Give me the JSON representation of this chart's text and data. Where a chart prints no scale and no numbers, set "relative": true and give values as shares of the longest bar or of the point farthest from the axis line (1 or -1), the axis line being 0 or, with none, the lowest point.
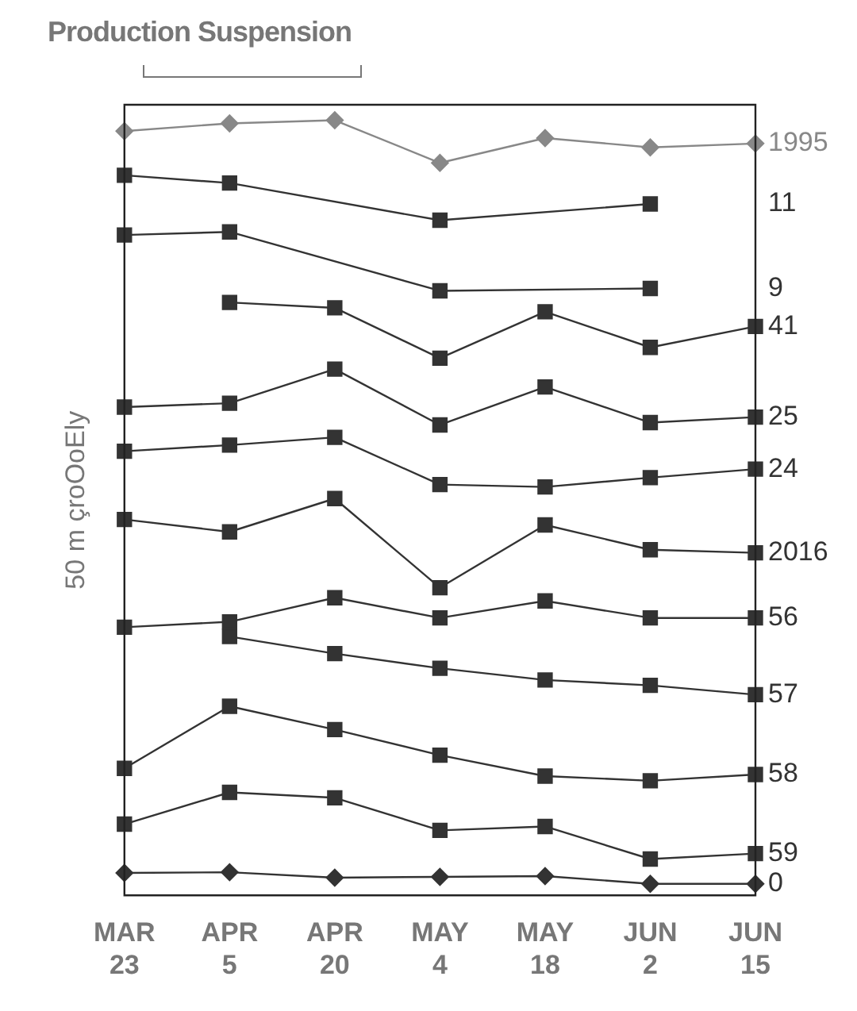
{
  "chart_data": {
    "type": "line",
    "title": "Production Suspension",
    "ylabel": "50 m çroOoEly",
    "relative": true,
    "legend": false,
    "grid": false,
    "categories": [
      "MAR 23",
      "APR 5",
      "APR 20",
      "MAY 4",
      "MAY 18",
      "JUN 2",
      "JUN 15"
    ],
    "series": [
      {
        "name": "1995",
        "color": "#888888",
        "marker": "diamond",
        "values": [
          0.986,
          0.996,
          1,
          0.945,
          0.977,
          0.965,
          0.97
        ]
      },
      {
        "name": "11",
        "color": "#333333",
        "marker": "square",
        "values": [
          0.929,
          0.919,
          null,
          0.871,
          null,
          0.892,
          null
        ]
      },
      {
        "name": "9",
        "color": "#333333",
        "marker": "square",
        "values": [
          0.852,
          0.856,
          null,
          0.78,
          null,
          0.783,
          null
        ]
      },
      {
        "name": "41",
        "color": "#333333",
        "marker": "square",
        "values": [
          null,
          0.765,
          0.758,
          0.693,
          0.753,
          0.707,
          0.734
        ]
      },
      {
        "name": "25",
        "color": "#333333",
        "marker": "square",
        "values": [
          0.63,
          0.635,
          0.679,
          0.607,
          0.656,
          0.61,
          0.617
        ]
      },
      {
        "name": "24",
        "color": "#333333",
        "marker": "square",
        "values": [
          0.573,
          0.581,
          0.591,
          0.53,
          0.527,
          0.539,
          0.55
        ]
      },
      {
        "name": "2016",
        "color": "#333333",
        "marker": "square",
        "values": [
          0.485,
          0.469,
          0.512,
          0.397,
          0.478,
          0.446,
          0.442
        ]
      },
      {
        "name": "56",
        "color": "#333333",
        "marker": "square",
        "values": [
          0.346,
          0.353,
          0.384,
          0.358,
          0.38,
          0.358,
          0.358
        ]
      },
      {
        "name": "57",
        "color": "#333333",
        "marker": "square",
        "values": [
          null,
          0.334,
          0.312,
          0.293,
          0.278,
          0.271,
          0.259
        ]
      },
      {
        "name": "58",
        "color": "#333333",
        "marker": "square",
        "values": [
          0.164,
          0.244,
          0.214,
          0.181,
          0.154,
          0.148,
          0.156
        ]
      },
      {
        "name": "59",
        "color": "#333333",
        "marker": "square",
        "values": [
          0.092,
          0.133,
          0.126,
          0.084,
          0.089,
          0.047,
          0.054
        ]
      },
      {
        "name": "0",
        "color": "#333333",
        "marker": "diamond",
        "values": [
          0.029,
          0.03,
          0.023,
          0.024,
          0.025,
          0.015,
          0.015
        ]
      }
    ]
  }
}
